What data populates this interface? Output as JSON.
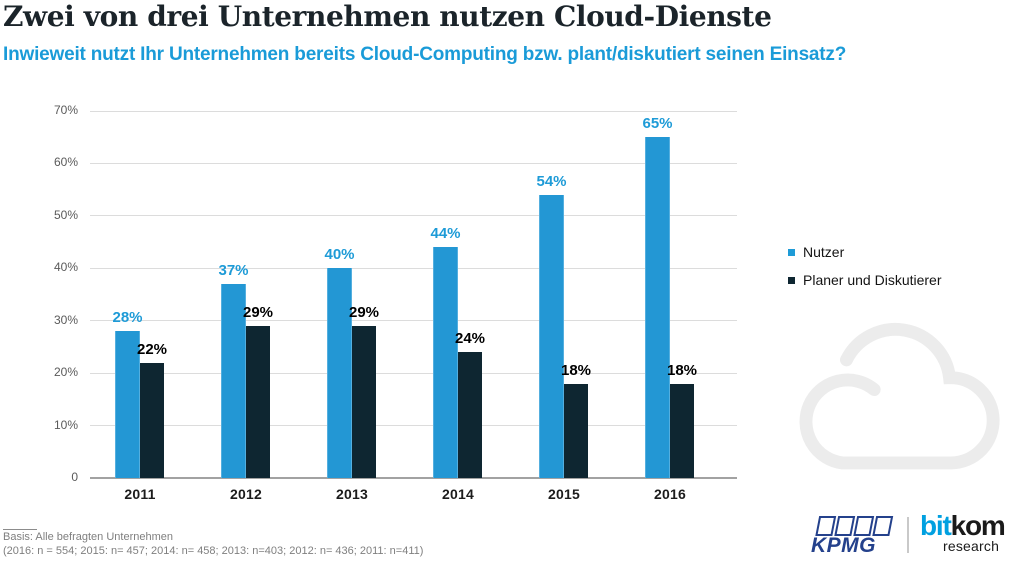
{
  "header": {
    "title": "Zwei von drei Unternehmen nutzen Cloud-Dienste",
    "subtitle": "Inwieweit nutzt Ihr Unternehmen bereits Cloud-Computing bzw. plant/diskutiert seinen Einsatz?"
  },
  "chart_data": {
    "type": "bar",
    "categories": [
      "2011",
      "2012",
      "2013",
      "2014",
      "2015",
      "2016"
    ],
    "series": [
      {
        "name": "Nutzer",
        "color": "#2397d4",
        "label_color": "#1e9bd7",
        "values": [
          28,
          37,
          40,
          44,
          54,
          65
        ]
      },
      {
        "name": "Planer und Diskutierer",
        "color": "#0e2631",
        "label_color": "#000000",
        "values": [
          22,
          29,
          29,
          24,
          18,
          18
        ]
      }
    ],
    "title": "Zwei von drei Unternehmen nutzen Cloud-Dienste",
    "xlabel": "",
    "ylabel": "",
    "ylim": [
      0,
      70
    ],
    "ytick_labels": [
      "70%",
      "60%",
      "50%",
      "40%",
      "30%",
      "20%",
      "10%",
      "0"
    ],
    "grid": true,
    "legend_position": "right",
    "value_suffix": "%"
  },
  "footer": {
    "basis": "Basis: Alle befragten Unternehmen",
    "samples": "(2016: n = 554; 2015: n= 457; 2014: n= 458; 2013: n=403; 2012: n= 436; 2011: n=411)"
  },
  "branding": {
    "kpmg_label": "KPMG",
    "bitkom_part1": "bit",
    "bitkom_part2": "kom",
    "bitkom_sub": "research"
  },
  "colors": {
    "accent_blue": "#2397d4",
    "accent_blue_label": "#1e9bd7",
    "dark_bar": "#0e2631",
    "subtitle_blue": "#1a9bd8",
    "title_text": "#1b242a",
    "gridline": "#dcdcdc",
    "axis": "#a2a2a2",
    "tick_text": "#5a5a5a",
    "footnote_gray": "#7f7f7f",
    "cloud_gray": "#ececec",
    "kpmg_blue": "#24418c",
    "bitkom_blue": "#00a0e0"
  }
}
